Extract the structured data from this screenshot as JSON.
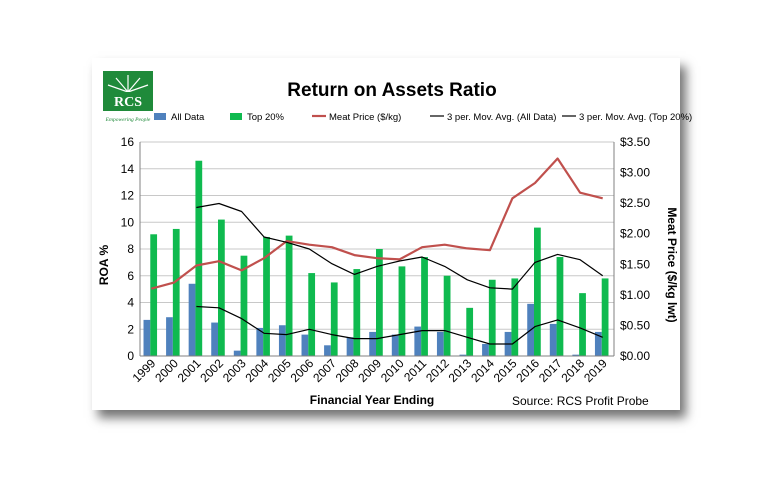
{
  "logo": {
    "text": "RCS",
    "tagline": "Empowering People",
    "color": "#1f8a3a"
  },
  "source_text": "Source: RCS Profit Probe",
  "colors": {
    "all_data": "#4f81bd",
    "top20": "#0fba4f",
    "meat": "#c0504d",
    "mavg": "#000000"
  },
  "chart_data": {
    "type": "bar",
    "title": "Return on Assets Ratio",
    "xlabel": "Financial Year Ending",
    "ylabel": "ROA %",
    "y2label": "Meat Price ($/kg lwt)",
    "categories": [
      "1999",
      "2000",
      "2001",
      "2002",
      "2003",
      "2004",
      "2005",
      "2006",
      "2007",
      "2008",
      "2009",
      "2010",
      "2011",
      "2012",
      "2013",
      "2014",
      "2015",
      "2016",
      "2017",
      "2018",
      "2019"
    ],
    "ylim": [
      0,
      16
    ],
    "yticks": [
      "0",
      "2",
      "4",
      "6",
      "8",
      "10",
      "12",
      "14",
      "16"
    ],
    "y2lim": [
      0,
      3.5
    ],
    "y2ticks": [
      "$0.00",
      "$0.50",
      "$1.00",
      "$1.50",
      "$2.00",
      "$2.50",
      "$3.00",
      "$3.50"
    ],
    "grid": "horizontal",
    "legend_position": "top",
    "series": [
      {
        "name": "All Data",
        "type": "bar",
        "axis": "left",
        "values": [
          2.7,
          2.9,
          5.4,
          2.5,
          0.4,
          2.1,
          2.3,
          1.6,
          0.8,
          1.4,
          1.8,
          1.6,
          2.2,
          1.8,
          0.1,
          0.9,
          1.8,
          3.9,
          2.4,
          0.1,
          1.8
        ]
      },
      {
        "name": "Top 20%",
        "type": "bar",
        "axis": "left",
        "values": [
          9.1,
          9.5,
          14.6,
          10.2,
          7.5,
          8.9,
          9.0,
          6.2,
          5.5,
          6.5,
          8.0,
          6.7,
          7.4,
          6.0,
          3.6,
          5.7,
          5.8,
          9.6,
          7.4,
          4.7,
          5.8
        ]
      },
      {
        "name": "Meat Price ($/kg)",
        "type": "line",
        "axis": "right",
        "values": [
          1.1,
          1.2,
          1.48,
          1.55,
          1.4,
          1.6,
          1.88,
          1.82,
          1.78,
          1.65,
          1.6,
          1.58,
          1.78,
          1.82,
          1.76,
          1.73,
          2.58,
          2.83,
          3.23,
          2.67,
          2.58
        ]
      },
      {
        "name": "3 per. Mov. Avg. (All Data)",
        "type": "line",
        "axis": "left",
        "values": [
          null,
          null,
          3.7,
          3.6,
          2.8,
          1.7,
          1.6,
          2.0,
          1.6,
          1.3,
          1.3,
          1.6,
          1.9,
          1.9,
          1.4,
          0.9,
          0.9,
          2.2,
          2.7,
          2.1,
          1.4
        ]
      },
      {
        "name": "3 per. Mov. Avg. (Top 20%)",
        "type": "line",
        "axis": "left",
        "values": [
          null,
          null,
          11.1,
          11.4,
          10.8,
          8.9,
          8.5,
          8.0,
          6.9,
          6.1,
          6.7,
          7.1,
          7.4,
          6.7,
          5.7,
          5.1,
          5.0,
          7.0,
          7.6,
          7.2,
          6.0
        ]
      }
    ]
  }
}
